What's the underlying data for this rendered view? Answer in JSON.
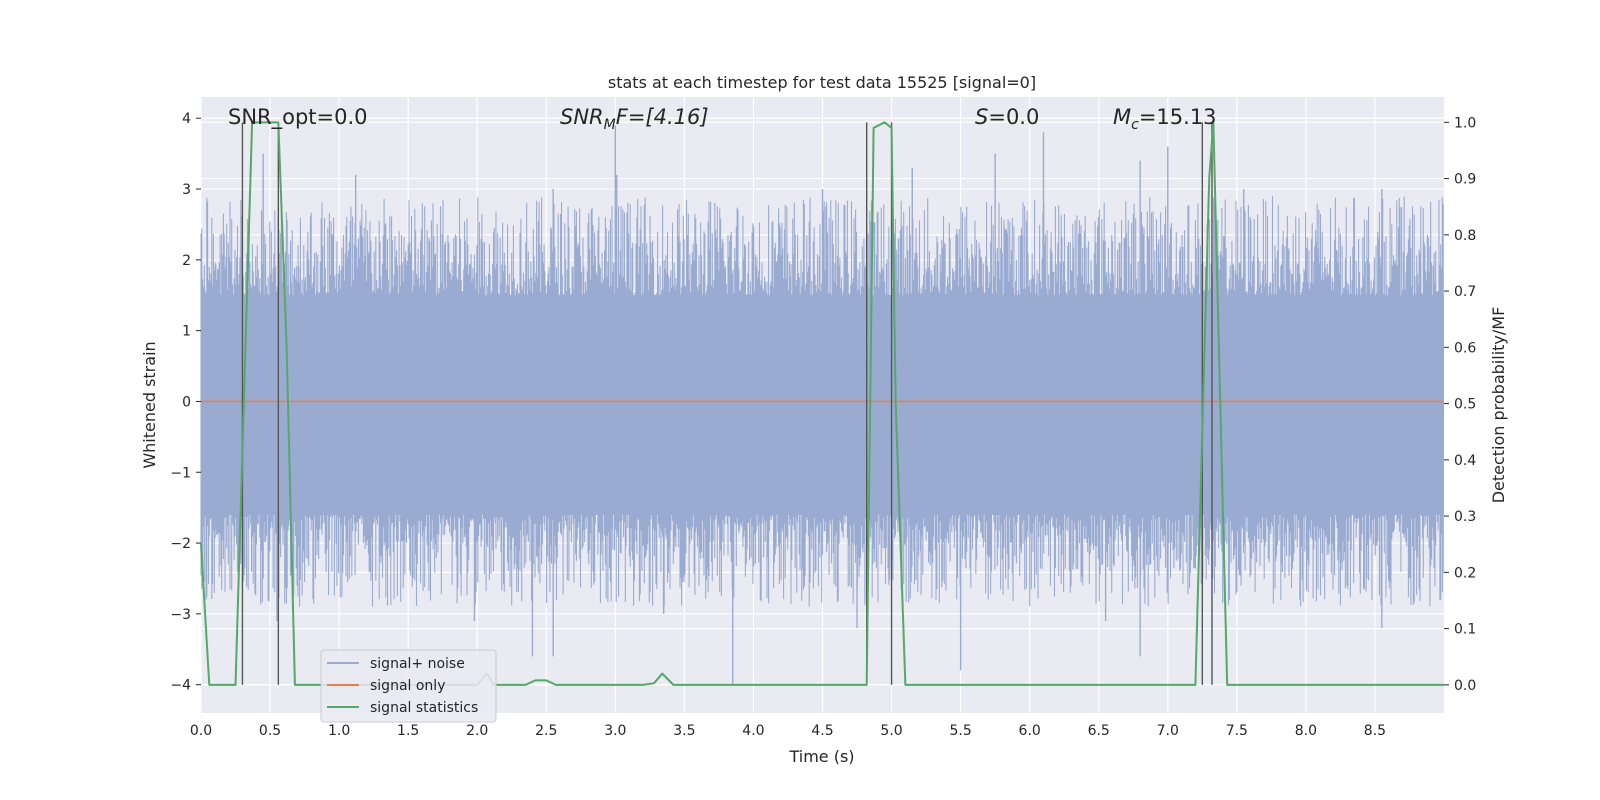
{
  "chart_data": {
    "type": "line",
    "title": "stats at each timestep for test data 15525 [signal=0]",
    "xlabel": "Time (s)",
    "ylabel": "Whitened strain",
    "y2label": "Detection probability/MF",
    "xlim": [
      0,
      9.0
    ],
    "ylim": [
      -4.4,
      4.3
    ],
    "y2lim": [
      -0.05,
      1.045
    ],
    "xticks": [
      0.0,
      0.5,
      1.0,
      1.5,
      2.0,
      2.5,
      3.0,
      3.5,
      4.0,
      4.5,
      5.0,
      5.5,
      6.0,
      6.5,
      7.0,
      7.5,
      8.0,
      8.5
    ],
    "xtick_labels": [
      "0.0",
      "0.5",
      "1.0",
      "1.5",
      "2.0",
      "2.5",
      "3.0",
      "3.5",
      "4.0",
      "4.5",
      "5.0",
      "5.5",
      "6.0",
      "6.5",
      "7.0",
      "7.5",
      "8.0",
      "8.5"
    ],
    "yticks": [
      4,
      3,
      2,
      1,
      0,
      -1,
      -2,
      -3,
      -4
    ],
    "ytick_labels": [
      "4",
      "3",
      "2",
      "1",
      "0",
      "−1",
      "−2",
      "−3",
      "−4"
    ],
    "y2ticks": [
      1.0,
      0.9,
      0.8,
      0.7,
      0.6,
      0.5,
      0.4,
      0.3,
      0.2,
      0.1,
      0.0
    ],
    "y2tick_labels": [
      "1.0",
      "0.9",
      "0.8",
      "0.7",
      "0.6",
      "0.5",
      "0.4",
      "0.3",
      "0.2",
      "0.1",
      "0.0"
    ],
    "grid": true,
    "legend_position": "bottom-left",
    "annotations": {
      "snr_opt": "SNR_opt=0.0",
      "snr_mf_main": "SNR",
      "snr_mf_sub": "M",
      "snr_mf_rest": "F=[4.16]",
      "s_main": "S",
      "s_rest": "=0.0",
      "mc_main": "M",
      "mc_sub": "c",
      "mc_rest": "=15.13"
    },
    "series": [
      {
        "name": "signal+ noise",
        "color": "#9aabd1",
        "style": "noise band",
        "band_core": [
          -1.6,
          1.5
        ],
        "peaks": [
          {
            "x": 3.0,
            "y": 3.9
          },
          {
            "x": 3.01,
            "y": 3.2
          },
          {
            "x": 0.45,
            "y": 3.5
          },
          {
            "x": 5.15,
            "y": 3.3
          },
          {
            "x": 5.05,
            "y": 2.3
          },
          {
            "x": 1.12,
            "y": 3.2
          },
          {
            "x": 6.1,
            "y": 3.8
          },
          {
            "x": 5.75,
            "y": 3.5
          },
          {
            "x": 4.5,
            "y": 3.0
          },
          {
            "x": 7.0,
            "y": 3.6
          },
          {
            "x": 6.8,
            "y": 3.4
          },
          {
            "x": 7.55,
            "y": 3.0
          },
          {
            "x": 8.55,
            "y": 3.0
          },
          {
            "x": 2.55,
            "y": 3.0
          }
        ],
        "troughs": [
          {
            "x": 3.85,
            "y": -4.0
          },
          {
            "x": 2.4,
            "y": -3.6
          },
          {
            "x": 2.55,
            "y": -3.6
          },
          {
            "x": 5.5,
            "y": -3.8
          },
          {
            "x": 6.8,
            "y": -3.6
          },
          {
            "x": 6.55,
            "y": -3.1
          },
          {
            "x": 8.55,
            "y": -3.2
          },
          {
            "x": 3.35,
            "y": -3.0
          },
          {
            "x": 1.98,
            "y": -3.1
          },
          {
            "x": 4.75,
            "y": -3.2
          },
          {
            "x": 0.55,
            "y": -3.1
          },
          {
            "x": 0.45,
            "y": -2.5
          }
        ]
      },
      {
        "name": "signal only",
        "color": "#dd8452",
        "x": [
          0.0,
          9.0
        ],
        "y": [
          0.0,
          0.0
        ]
      },
      {
        "name": "signal statistics",
        "color": "#55a868",
        "axis": "right",
        "x": [
          0.0,
          0.06,
          0.25,
          0.37,
          0.42,
          0.56,
          0.62,
          0.68,
          0.7,
          2.0,
          2.07,
          2.12,
          2.35,
          2.42,
          2.5,
          2.57,
          3.2,
          3.28,
          3.34,
          3.42,
          4.82,
          4.87,
          4.95,
          5.0,
          5.03,
          5.1,
          7.2,
          7.3,
          7.33,
          7.43,
          9.0
        ],
        "y": [
          0.25,
          0.0,
          0.0,
          1.0,
          1.0,
          1.0,
          0.6,
          0.0,
          0.0,
          0.0,
          0.02,
          0.0,
          0.0,
          0.008,
          0.008,
          0.0,
          0.0,
          0.003,
          0.02,
          0.0,
          0.0,
          0.99,
          1.0,
          0.99,
          0.5,
          0.0,
          0.0,
          0.9,
          1.0,
          0.0,
          0.0
        ]
      }
    ],
    "vlines": [
      {
        "x": 0.3,
        "y_from": 1.0,
        "y_to": 0.0
      },
      {
        "x": 0.56,
        "y_from": 1.0,
        "y_to": 0.0
      },
      {
        "x": 4.82,
        "y_from": 1.0,
        "y_to": 0.0
      },
      {
        "x": 5.0,
        "y_from": 1.0,
        "y_to": 0.0
      },
      {
        "x": 7.25,
        "y_from": 1.0,
        "y_to": 0.0
      },
      {
        "x": 7.32,
        "y_from": 1.0,
        "y_to": 0.0
      }
    ],
    "colors": {
      "plot_bg": "#eaeaf2",
      "grid": "#ffffff",
      "vline": "#555555",
      "text": "#262626"
    }
  }
}
